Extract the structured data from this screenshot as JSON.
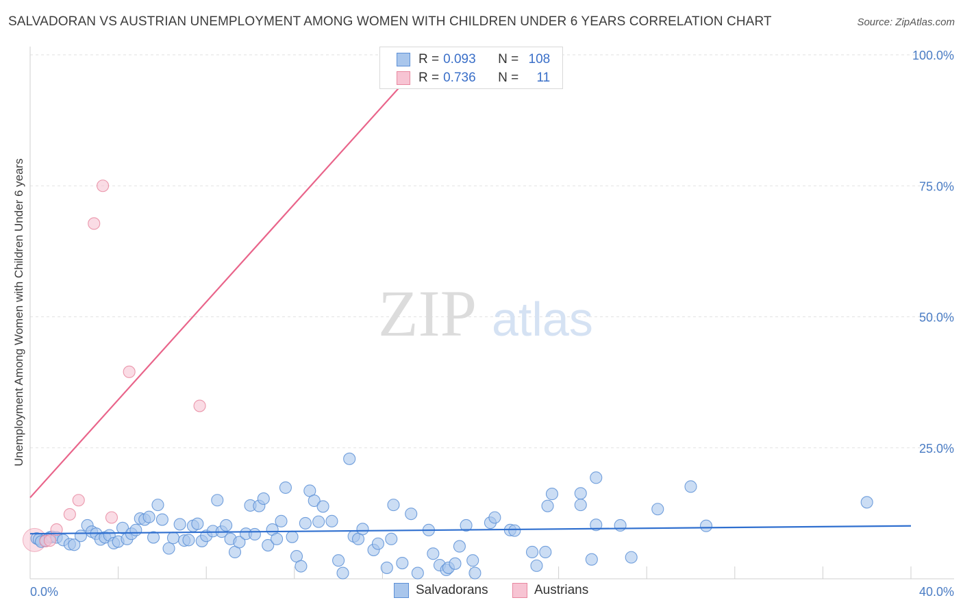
{
  "chart_data": {
    "type": "scatter",
    "title": "SALVADORAN VS AUSTRIAN UNEMPLOYMENT AMONG WOMEN WITH CHILDREN UNDER 6 YEARS CORRELATION CHART",
    "source": "Source: ZipAtlas.com",
    "xlabel": "",
    "ylabel": "Unemployment Among Women with Children Under 6 years",
    "xlim": [
      0,
      40
    ],
    "ylim": [
      0,
      100
    ],
    "x_tick_labels": {
      "min": "0.0%",
      "max": "40.0%"
    },
    "y_ticks": [
      {
        "value": 25,
        "label": "25.0%"
      },
      {
        "value": 50,
        "label": "50.0%"
      },
      {
        "value": 75,
        "label": "75.0%"
      },
      {
        "value": 100,
        "label": "100.0%"
      }
    ],
    "watermark": {
      "zip": "ZIP",
      "atlas": "atlas"
    },
    "legend": {
      "entries": [
        {
          "r_label": "R =",
          "r_value": "0.093",
          "n_label": "N =",
          "n_value": "108"
        },
        {
          "r_label": "R =",
          "r_value": "0.736",
          "n_label": "N =",
          "n_value": "11"
        }
      ]
    },
    "series": [
      {
        "name": "Salvadorans",
        "color": "#a9c6ec",
        "edge": "#5b8fd6",
        "trend_color": "#2f6fcf",
        "trend": {
          "x": [
            0,
            40
          ],
          "y": [
            8.6,
            10.1
          ]
        },
        "points": [
          [
            0.3,
            7.7
          ],
          [
            0.4,
            7.5
          ],
          [
            0.5,
            7.1
          ],
          [
            0.7,
            7.3
          ],
          [
            0.9,
            7.9
          ],
          [
            1.0,
            8.0
          ],
          [
            1.2,
            7.9
          ],
          [
            1.5,
            7.4
          ],
          [
            1.8,
            6.6
          ],
          [
            2.0,
            6.5
          ],
          [
            2.3,
            8.2
          ],
          [
            2.6,
            10.2
          ],
          [
            2.8,
            9.0
          ],
          [
            3.0,
            8.6
          ],
          [
            3.2,
            7.5
          ],
          [
            3.4,
            7.9
          ],
          [
            3.6,
            8.3
          ],
          [
            3.8,
            6.8
          ],
          [
            4.0,
            7.1
          ],
          [
            4.2,
            9.7
          ],
          [
            4.4,
            7.6
          ],
          [
            4.6,
            8.6
          ],
          [
            4.8,
            9.3
          ],
          [
            5.0,
            11.5
          ],
          [
            5.2,
            11.3
          ],
          [
            5.4,
            11.8
          ],
          [
            5.6,
            7.9
          ],
          [
            5.8,
            14.1
          ],
          [
            6.0,
            11.3
          ],
          [
            6.3,
            5.8
          ],
          [
            6.5,
            7.8
          ],
          [
            6.8,
            10.4
          ],
          [
            7.0,
            7.3
          ],
          [
            7.2,
            7.4
          ],
          [
            7.4,
            10.1
          ],
          [
            7.6,
            10.5
          ],
          [
            7.8,
            7.2
          ],
          [
            8.0,
            8.2
          ],
          [
            8.3,
            9.1
          ],
          [
            8.5,
            15.0
          ],
          [
            8.7,
            9.0
          ],
          [
            8.9,
            10.2
          ],
          [
            9.1,
            7.6
          ],
          [
            9.3,
            5.1
          ],
          [
            9.5,
            7.0
          ],
          [
            9.8,
            8.6
          ],
          [
            10.0,
            14.0
          ],
          [
            10.2,
            8.5
          ],
          [
            10.4,
            13.9
          ],
          [
            10.6,
            15.3
          ],
          [
            10.8,
            6.4
          ],
          [
            11.0,
            9.4
          ],
          [
            11.2,
            7.6
          ],
          [
            11.4,
            11.0
          ],
          [
            11.6,
            17.4
          ],
          [
            11.9,
            8.0
          ],
          [
            12.1,
            4.3
          ],
          [
            12.3,
            2.4
          ],
          [
            12.5,
            10.6
          ],
          [
            12.7,
            16.8
          ],
          [
            12.9,
            14.9
          ],
          [
            13.1,
            10.9
          ],
          [
            13.3,
            13.8
          ],
          [
            13.7,
            11.0
          ],
          [
            14.0,
            3.5
          ],
          [
            14.2,
            1.1
          ],
          [
            14.5,
            22.9
          ],
          [
            14.7,
            8.1
          ],
          [
            14.9,
            7.6
          ],
          [
            15.1,
            9.5
          ],
          [
            15.6,
            5.5
          ],
          [
            15.8,
            6.7
          ],
          [
            16.2,
            2.1
          ],
          [
            16.4,
            7.6
          ],
          [
            16.5,
            14.1
          ],
          [
            16.9,
            3.0
          ],
          [
            17.3,
            12.4
          ],
          [
            17.6,
            1.1
          ],
          [
            18.1,
            9.3
          ],
          [
            18.3,
            4.8
          ],
          [
            18.6,
            2.6
          ],
          [
            18.9,
            1.7
          ],
          [
            19.0,
            2.1
          ],
          [
            19.3,
            2.9
          ],
          [
            19.5,
            6.2
          ],
          [
            19.8,
            10.2
          ],
          [
            20.1,
            3.5
          ],
          [
            20.2,
            1.1
          ],
          [
            20.9,
            10.7
          ],
          [
            21.1,
            11.7
          ],
          [
            21.8,
            9.3
          ],
          [
            22.0,
            9.2
          ],
          [
            22.8,
            5.1
          ],
          [
            23.0,
            2.5
          ],
          [
            23.5,
            13.9
          ],
          [
            23.7,
            16.2
          ],
          [
            23.4,
            5.1
          ],
          [
            25.0,
            16.3
          ],
          [
            25.0,
            14.1
          ],
          [
            25.5,
            3.7
          ],
          [
            25.7,
            10.3
          ],
          [
            25.7,
            19.3
          ],
          [
            26.8,
            10.2
          ],
          [
            27.3,
            4.1
          ],
          [
            28.5,
            13.3
          ],
          [
            30.0,
            17.6
          ],
          [
            30.7,
            10.1
          ],
          [
            38.0,
            14.6
          ]
        ]
      },
      {
        "name": "Austrians",
        "color": "#f7c4d3",
        "edge": "#e8879f",
        "trend_color": "#e9648a",
        "trend": {
          "x": [
            0,
            18.1
          ],
          "y": [
            15.5,
            100
          ]
        },
        "points": [
          [
            0.2,
            7.4
          ],
          [
            0.7,
            7.2
          ],
          [
            0.9,
            7.3
          ],
          [
            1.2,
            9.4
          ],
          [
            1.8,
            12.3
          ],
          [
            2.2,
            15.0
          ],
          [
            2.9,
            67.8
          ],
          [
            3.3,
            75.0
          ],
          [
            3.7,
            11.7
          ],
          [
            4.5,
            39.5
          ],
          [
            7.7,
            33.0
          ]
        ]
      }
    ]
  }
}
